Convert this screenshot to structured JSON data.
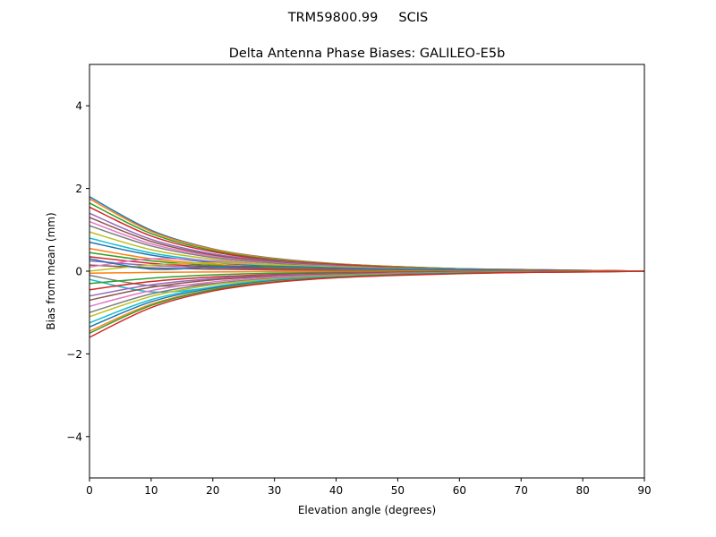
{
  "chart_data": {
    "type": "line",
    "suptitle": "TRM59800.99     SCIS",
    "title": "Delta Antenna Phase Biases: GALILEO-E5b",
    "xlabel": "Elevation angle (degrees)",
    "ylabel": "Bias from mean (mm)",
    "xlim": [
      0,
      90
    ],
    "ylim": [
      -5,
      5
    ],
    "xticks": [
      0,
      10,
      20,
      30,
      40,
      50,
      60,
      70,
      80,
      90
    ],
    "yticks": [
      -4,
      -2,
      0,
      2,
      4
    ],
    "ytick_labels": [
      "−4",
      "−2",
      "0",
      "2",
      "4"
    ],
    "grid": false,
    "colors": [
      "#1f77b4",
      "#ff7f0e",
      "#2ca02c",
      "#d62728",
      "#9467bd",
      "#8c564b",
      "#e377c2",
      "#7f7f7f",
      "#bcbd22",
      "#17becf"
    ],
    "x": [
      0,
      10,
      20,
      30,
      40,
      50,
      60,
      70,
      80,
      90
    ],
    "series": [
      {
        "values": [
          1.8,
          0.99,
          0.54,
          0.31,
          0.18,
          0.11,
          0.06,
          0.04,
          0.02,
          0
        ]
      },
      {
        "values": [
          1.75,
          0.96,
          0.53,
          0.3,
          0.18,
          0.11,
          0.06,
          0.04,
          0.02,
          0
        ]
      },
      {
        "values": [
          1.65,
          0.91,
          0.5,
          0.28,
          0.17,
          0.1,
          0.06,
          0.03,
          0.02,
          0
        ]
      },
      {
        "values": [
          1.55,
          0.85,
          0.47,
          0.26,
          0.16,
          0.09,
          0.05,
          0.03,
          0.02,
          0
        ]
      },
      {
        "values": [
          1.4,
          0.77,
          0.42,
          0.24,
          0.14,
          0.08,
          0.05,
          0.03,
          0.01,
          0
        ]
      },
      {
        "values": [
          1.3,
          0.72,
          0.39,
          0.22,
          0.13,
          0.08,
          0.05,
          0.03,
          0.01,
          0
        ]
      },
      {
        "values": [
          1.2,
          0.66,
          0.36,
          0.2,
          0.12,
          0.07,
          0.04,
          0.02,
          0.01,
          0
        ]
      },
      {
        "values": [
          1.1,
          0.61,
          0.33,
          0.19,
          0.11,
          0.07,
          0.04,
          0.02,
          0.01,
          0
        ]
      },
      {
        "values": [
          0.95,
          0.52,
          0.29,
          0.16,
          0.1,
          0.06,
          0.03,
          0.02,
          0.01,
          0
        ]
      },
      {
        "values": [
          0.8,
          0.44,
          0.24,
          0.14,
          0.08,
          0.05,
          0.03,
          0.02,
          0.01,
          0
        ]
      },
      {
        "values": [
          0.7,
          0.39,
          0.21,
          0.12,
          0.07,
          0.04,
          0.02,
          0.01,
          0.01,
          0
        ]
      },
      {
        "values": [
          0.55,
          0.3,
          0.17,
          0.09,
          0.06,
          0.03,
          0.02,
          0.01,
          0.01,
          0
        ]
      },
      {
        "values": [
          0.45,
          0.25,
          0.14,
          0.08,
          0.05,
          0.03,
          0.02,
          0.01,
          0,
          0
        ]
      },
      {
        "values": [
          0.35,
          0.19,
          0.11,
          0.06,
          0.04,
          0.02,
          0.01,
          0.01,
          0,
          0
        ]
      },
      {
        "values": [
          0.25,
          0.14,
          0.08,
          0.04,
          0.03,
          0.02,
          0.01,
          0.01,
          0,
          0
        ]
      },
      {
        "values": [
          0.15,
          0.08,
          0.05,
          0.03,
          0.02,
          0.01,
          0.01,
          0,
          0,
          0
        ]
      },
      {
        "values": [
          0.1,
          0.3,
          0.25,
          0.15,
          0.08,
          0.05,
          0.03,
          0.02,
          0.01,
          0
        ]
      },
      {
        "values": [
          -0.1,
          -0.35,
          -0.3,
          -0.2,
          -0.12,
          -0.07,
          -0.04,
          -0.02,
          -0.01,
          0
        ]
      },
      {
        "values": [
          0.0,
          0.15,
          0.2,
          0.15,
          0.1,
          0.06,
          0.03,
          0.02,
          0.01,
          0
        ]
      },
      {
        "values": [
          -0.2,
          -0.5,
          -0.4,
          -0.25,
          -0.15,
          -0.09,
          -0.05,
          -0.03,
          -0.01,
          0
        ]
      },
      {
        "values": [
          0.3,
          0.05,
          0.1,
          0.12,
          0.08,
          0.05,
          0.03,
          0.02,
          0.01,
          0
        ]
      },
      {
        "values": [
          -0.05,
          -0.03,
          -0.02,
          -0.01,
          -0.01,
          0,
          0,
          0,
          0,
          0
        ]
      },
      {
        "values": [
          -0.3,
          -0.17,
          -0.09,
          -0.05,
          -0.03,
          -0.02,
          -0.01,
          -0.01,
          0,
          0
        ]
      },
      {
        "values": [
          -0.45,
          -0.25,
          -0.14,
          -0.08,
          -0.05,
          -0.03,
          -0.02,
          -0.01,
          0,
          0
        ]
      },
      {
        "values": [
          -0.6,
          -0.33,
          -0.18,
          -0.1,
          -0.06,
          -0.04,
          -0.02,
          -0.01,
          -0.01,
          0
        ]
      },
      {
        "values": [
          -0.7,
          -0.39,
          -0.21,
          -0.12,
          -0.07,
          -0.04,
          -0.02,
          -0.01,
          -0.01,
          0
        ]
      },
      {
        "values": [
          -0.85,
          -0.47,
          -0.26,
          -0.14,
          -0.09,
          -0.05,
          -0.03,
          -0.02,
          -0.01,
          0
        ]
      },
      {
        "values": [
          -1.0,
          -0.55,
          -0.3,
          -0.17,
          -0.1,
          -0.06,
          -0.04,
          -0.02,
          -0.01,
          0
        ]
      },
      {
        "values": [
          -1.1,
          -0.61,
          -0.33,
          -0.19,
          -0.11,
          -0.07,
          -0.04,
          -0.02,
          -0.01,
          0
        ]
      },
      {
        "values": [
          -1.25,
          -0.69,
          -0.38,
          -0.21,
          -0.13,
          -0.08,
          -0.04,
          -0.03,
          -0.01,
          0
        ]
      },
      {
        "values": [
          -1.35,
          -0.74,
          -0.41,
          -0.23,
          -0.14,
          -0.08,
          -0.05,
          -0.03,
          -0.01,
          0
        ]
      },
      {
        "values": [
          -1.45,
          -0.8,
          -0.44,
          -0.25,
          -0.15,
          -0.09,
          -0.05,
          -0.03,
          -0.01,
          0
        ]
      },
      {
        "values": [
          -1.5,
          -0.83,
          -0.45,
          -0.26,
          -0.15,
          -0.09,
          -0.05,
          -0.03,
          -0.02,
          0
        ]
      },
      {
        "values": [
          -1.6,
          -0.88,
          -0.48,
          -0.27,
          -0.16,
          -0.1,
          -0.06,
          -0.03,
          -0.02,
          0
        ]
      }
    ]
  }
}
